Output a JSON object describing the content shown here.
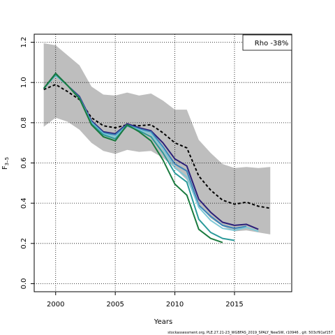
{
  "chart_data": {
    "type": "line",
    "xlabel": "Years",
    "ylabel": "F",
    "ylabel_subscript": "3–5",
    "annotation": "Rho -38%",
    "footer": "stockassessment.org, PLE.27.21-23_WGBFAS_2019_SPALY_NewSW, r10946 , git: 503cf91af157",
    "xlim": [
      1998.2,
      2019.8
    ],
    "ylim": [
      -0.04,
      1.24
    ],
    "x_ticks": [
      "2000",
      "2005",
      "2010",
      "2015"
    ],
    "y_ticks": [
      "0.0",
      "0.2",
      "0.4",
      "0.6",
      "0.8",
      "1.0",
      "1.2"
    ],
    "grid": true,
    "confidence_band": {
      "x": [
        1999,
        2000,
        2001,
        2002,
        2003,
        2004,
        2005,
        2006,
        2007,
        2008,
        2009,
        2010,
        2011,
        2012,
        2013,
        2014,
        2015,
        2016,
        2017,
        2018
      ],
      "upper": [
        1.195,
        1.185,
        1.135,
        1.085,
        0.98,
        0.94,
        0.935,
        0.95,
        0.935,
        0.945,
        0.91,
        0.865,
        0.865,
        0.715,
        0.65,
        0.595,
        0.575,
        0.58,
        0.575,
        0.58
      ],
      "lower": [
        0.78,
        0.825,
        0.805,
        0.765,
        0.7,
        0.66,
        0.645,
        0.665,
        0.655,
        0.66,
        0.625,
        0.575,
        0.515,
        0.39,
        0.325,
        0.285,
        0.26,
        0.265,
        0.255,
        0.245
      ],
      "color": "#bebebe"
    },
    "series": [
      {
        "style": "dashed-black",
        "color": "#000000",
        "x": [
          1999,
          2000,
          2001,
          2002,
          2003,
          2004,
          2005,
          2006,
          2007,
          2008,
          2009,
          2010,
          2011,
          2012,
          2013,
          2014,
          2015,
          2016,
          2017,
          2018
        ],
        "y": [
          0.965,
          0.99,
          0.955,
          0.915,
          0.825,
          0.785,
          0.775,
          0.79,
          0.785,
          0.79,
          0.75,
          0.7,
          0.675,
          0.535,
          0.465,
          0.415,
          0.395,
          0.405,
          0.385,
          0.375
        ]
      },
      {
        "style": "solid",
        "color": "#2b1f78",
        "x": [
          1999,
          2000,
          2001,
          2002,
          2003,
          2004,
          2005,
          2006,
          2007,
          2008,
          2009,
          2010,
          2011,
          2012,
          2013,
          2014,
          2015,
          2016,
          2017
        ],
        "y": [
          0.97,
          1.045,
          0.985,
          0.93,
          0.81,
          0.755,
          0.745,
          0.795,
          0.775,
          0.76,
          0.7,
          0.62,
          0.585,
          0.42,
          0.355,
          0.305,
          0.29,
          0.295,
          0.27
        ]
      },
      {
        "style": "solid",
        "color": "#3a83b8",
        "x": [
          1999,
          2000,
          2001,
          2002,
          2003,
          2004,
          2005,
          2006,
          2007,
          2008,
          2009,
          2010,
          2011,
          2012,
          2013,
          2014,
          2015,
          2016
        ],
        "y": [
          0.97,
          1.04,
          0.985,
          0.925,
          0.805,
          0.75,
          0.74,
          0.79,
          0.77,
          0.755,
          0.68,
          0.595,
          0.56,
          0.39,
          0.335,
          0.29,
          0.275,
          0.285
        ]
      },
      {
        "style": "solid",
        "color": "#7ec8d6",
        "x": [
          1999,
          2000,
          2001,
          2002,
          2003,
          2004,
          2005,
          2006,
          2007,
          2008,
          2009,
          2010,
          2011,
          2012,
          2013,
          2014,
          2015,
          2016,
          2017
        ],
        "y": [
          0.97,
          1.035,
          0.985,
          0.92,
          0.8,
          0.745,
          0.73,
          0.785,
          0.765,
          0.745,
          0.67,
          0.575,
          0.53,
          0.38,
          0.315,
          0.275,
          0.265,
          0.28,
          0.26
        ]
      },
      {
        "style": "solid",
        "color": "#2a9a9a",
        "x": [
          1999,
          2000,
          2001,
          2002,
          2003,
          2004,
          2005,
          2006,
          2007,
          2008,
          2009,
          2010,
          2011,
          2012,
          2013,
          2014,
          2015
        ],
        "y": [
          0.97,
          1.04,
          0.985,
          0.92,
          0.795,
          0.74,
          0.72,
          0.785,
          0.76,
          0.73,
          0.65,
          0.55,
          0.505,
          0.32,
          0.255,
          0.225,
          0.215
        ]
      },
      {
        "style": "solid",
        "color": "#1a7a3e",
        "x": [
          1999,
          2000,
          2001,
          2002,
          2003,
          2004,
          2005,
          2006,
          2007,
          2008,
          2009,
          2010,
          2011,
          2012,
          2013,
          2014
        ],
        "y": [
          0.97,
          1.045,
          0.985,
          0.92,
          0.79,
          0.73,
          0.71,
          0.79,
          0.755,
          0.71,
          0.615,
          0.495,
          0.44,
          0.27,
          0.225,
          0.205
        ]
      }
    ]
  }
}
